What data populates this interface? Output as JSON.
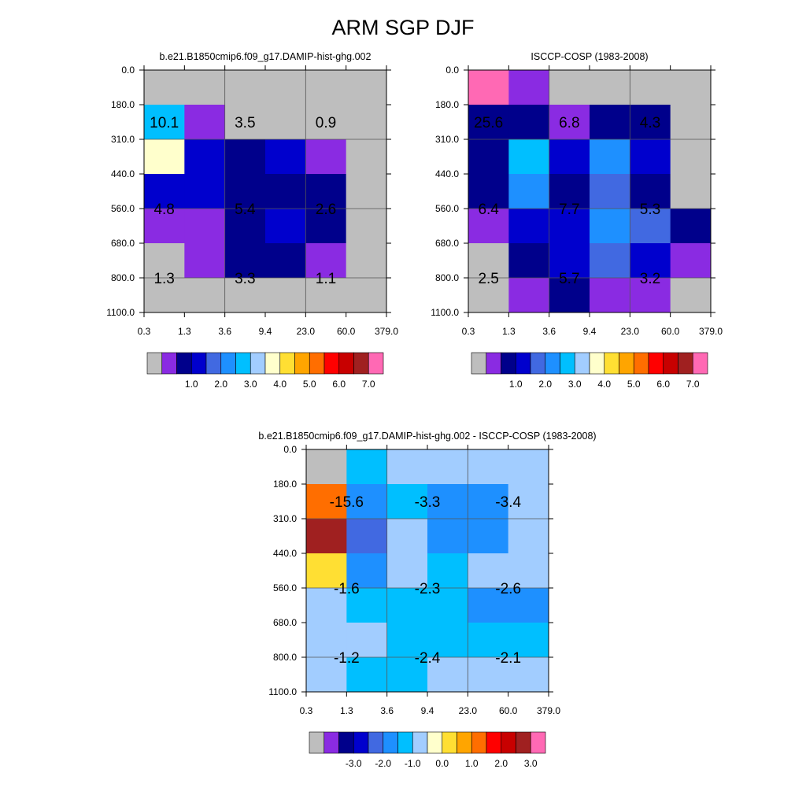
{
  "page_title": "ARM SGP DJF",
  "colors": {
    "palette": [
      "#bebebe",
      "#8a2be2",
      "#00008b",
      "#0000cd",
      "#4169e1",
      "#1e90ff",
      "#00bfff",
      "#a2cdff",
      "#ffffcc",
      "#ffdf33",
      "#ffa500",
      "#ff6e00",
      "#ff0000",
      "#c80000",
      "#a02020",
      "#ff69b4"
    ],
    "grid_line": "#555555"
  },
  "chart_data": [
    {
      "type": "heatmap",
      "title": "b.e21.B1850cmip6.f09_g17.DAMIP-hist-ghg.002",
      "x_ticks": [
        "0.3",
        "1.3",
        "3.6",
        "9.4",
        "23.0",
        "60.0",
        "379.0"
      ],
      "y_ticks": [
        "0.0",
        "180.0",
        "310.0",
        "440.0",
        "560.0",
        "680.0",
        "800.0",
        "1100.0"
      ],
      "cells": [
        [
          0,
          0,
          0,
          0,
          0,
          0
        ],
        [
          6,
          1,
          0,
          0,
          0,
          0
        ],
        [
          8,
          3,
          2,
          3,
          1,
          0
        ],
        [
          3,
          3,
          2,
          2,
          2,
          0
        ],
        [
          1,
          1,
          2,
          3,
          2,
          0
        ],
        [
          0,
          1,
          2,
          2,
          1,
          0
        ],
        [
          0,
          0,
          0,
          0,
          0,
          0
        ]
      ],
      "annotations": [
        {
          "text": "10.1",
          "col": 0.5,
          "row": 1.5
        },
        {
          "text": "3.5",
          "col": 2.5,
          "row": 1.5
        },
        {
          "text": "0.9",
          "col": 4.5,
          "row": 1.5
        },
        {
          "text": "4.8",
          "col": 0.5,
          "row": 4
        },
        {
          "text": "5.4",
          "col": 2.5,
          "row": 4
        },
        {
          "text": "2.6",
          "col": 4.5,
          "row": 4
        },
        {
          "text": "1.3",
          "col": 0.5,
          "row": 6
        },
        {
          "text": "3.3",
          "col": 2.5,
          "row": 6
        },
        {
          "text": "1.1",
          "col": 4.5,
          "row": 6
        }
      ],
      "colorbar": {
        "labels": [
          "1.0",
          "2.0",
          "3.0",
          "4.0",
          "5.0",
          "6.0",
          "7.0"
        ]
      }
    },
    {
      "type": "heatmap",
      "title": "ISCCP-COSP (1983-2008)",
      "x_ticks": [
        "0.3",
        "1.3",
        "3.6",
        "9.4",
        "23.0",
        "60.0",
        "379.0"
      ],
      "y_ticks": [
        "0.0",
        "180.0",
        "310.0",
        "440.0",
        "560.0",
        "680.0",
        "800.0",
        "1100.0"
      ],
      "cells": [
        [
          15,
          1,
          0,
          0,
          0,
          0
        ],
        [
          2,
          2,
          1,
          2,
          2,
          0
        ],
        [
          2,
          6,
          3,
          5,
          3,
          0
        ],
        [
          2,
          5,
          2,
          4,
          2,
          0
        ],
        [
          1,
          3,
          3,
          5,
          4,
          2
        ],
        [
          0,
          2,
          3,
          4,
          3,
          1
        ],
        [
          0,
          1,
          2,
          1,
          1,
          0
        ]
      ],
      "annotations": [
        {
          "text": "25.6",
          "col": 0.5,
          "row": 1.5
        },
        {
          "text": "6.8",
          "col": 2.5,
          "row": 1.5
        },
        {
          "text": "4.3",
          "col": 4.5,
          "row": 1.5
        },
        {
          "text": "6.4",
          "col": 0.5,
          "row": 4
        },
        {
          "text": "7.7",
          "col": 2.5,
          "row": 4
        },
        {
          "text": "5.3",
          "col": 4.5,
          "row": 4
        },
        {
          "text": "2.5",
          "col": 0.5,
          "row": 6
        },
        {
          "text": "5.7",
          "col": 2.5,
          "row": 6
        },
        {
          "text": "3.2",
          "col": 4.5,
          "row": 6
        }
      ],
      "colorbar": {
        "labels": [
          "1.0",
          "2.0",
          "3.0",
          "4.0",
          "5.0",
          "6.0",
          "7.0"
        ]
      }
    },
    {
      "type": "heatmap",
      "title": "b.e21.B1850cmip6.f09_g17.DAMIP-hist-ghg.002 - ISCCP-COSP (1983-2008)",
      "x_ticks": [
        "0.3",
        "1.3",
        "3.6",
        "9.4",
        "23.0",
        "60.0",
        "379.0"
      ],
      "y_ticks": [
        "0.0",
        "180.0",
        "310.0",
        "440.0",
        "560.0",
        "680.0",
        "800.0",
        "1100.0"
      ],
      "cells": [
        [
          0,
          6,
          7,
          7,
          7,
          7
        ],
        [
          11,
          5,
          6,
          5,
          5,
          7
        ],
        [
          14,
          4,
          7,
          5,
          5,
          7
        ],
        [
          9,
          5,
          7,
          6,
          7,
          7
        ],
        [
          7,
          6,
          6,
          6,
          5,
          5
        ],
        [
          7,
          7,
          6,
          6,
          6,
          6
        ],
        [
          7,
          6,
          6,
          7,
          7,
          7
        ]
      ],
      "annotations": [
        {
          "text": "-15.6",
          "col": 1,
          "row": 1.5
        },
        {
          "text": "-3.3",
          "col": 3,
          "row": 1.5
        },
        {
          "text": "-3.4",
          "col": 5,
          "row": 1.5
        },
        {
          "text": "-1.6",
          "col": 1,
          "row": 4
        },
        {
          "text": "-2.3",
          "col": 3,
          "row": 4
        },
        {
          "text": "-2.6",
          "col": 5,
          "row": 4
        },
        {
          "text": "-1.2",
          "col": 1,
          "row": 6
        },
        {
          "text": "-2.4",
          "col": 3,
          "row": 6
        },
        {
          "text": "-2.1",
          "col": 5,
          "row": 6
        }
      ],
      "colorbar": {
        "labels": [
          "-3.0",
          "-2.0",
          "-1.0",
          "0.0",
          "1.0",
          "2.0",
          "3.0"
        ]
      }
    }
  ]
}
